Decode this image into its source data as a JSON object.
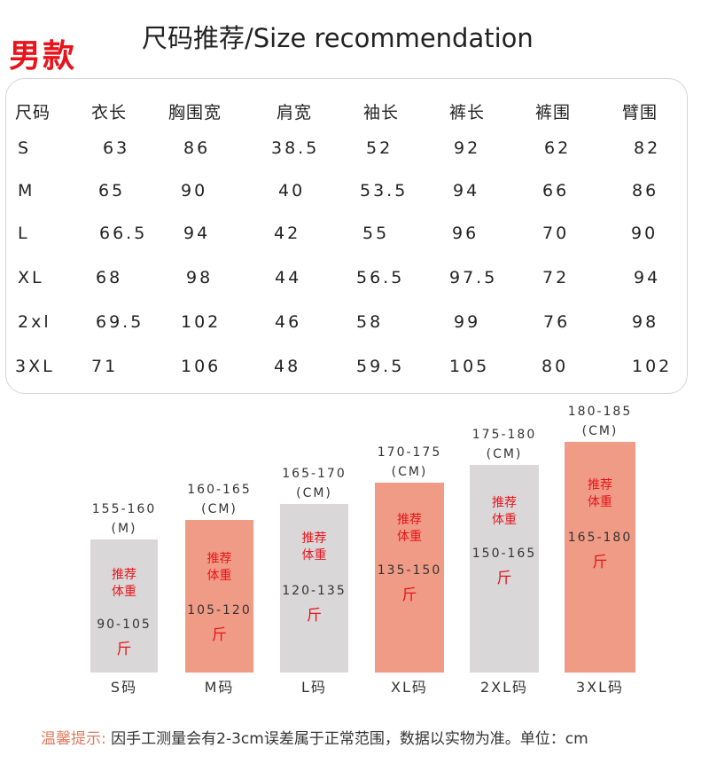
{
  "badge": "男款",
  "title": "尺码推荐/Size recommendation",
  "table": {
    "headers": [
      "尺码",
      "衣长",
      "胸围宽",
      "肩宽",
      "袖长",
      "裤长",
      "裤围",
      "臂围"
    ],
    "rows": [
      [
        "S",
        "63",
        "86",
        "38.5",
        "52",
        "92",
        "62",
        "82"
      ],
      [
        "M",
        "65",
        "90",
        "40",
        "53.5",
        "94",
        "66",
        "86"
      ],
      [
        "L",
        "66.5",
        "94",
        "42",
        "55",
        "96",
        "70",
        "90"
      ],
      [
        "XL",
        "68",
        "98",
        "44",
        "56.5",
        "97.5",
        "72",
        "94"
      ],
      [
        "2xl",
        "69.5",
        "102",
        "46",
        "58",
        "99",
        "76",
        "98"
      ],
      [
        "3XL",
        "71",
        "106",
        "48",
        "59.5",
        "105",
        "80",
        "102"
      ]
    ]
  },
  "bars": [
    {
      "size": "S码",
      "height_range": "155-160",
      "height_unit": "(M)",
      "rec": "推荐\n体重",
      "weight": "90-105",
      "jin": "斤",
      "color": "#d9d7d8"
    },
    {
      "size": "M码",
      "height_range": "160-165",
      "height_unit": "(CM)",
      "rec": "推荐\n体重",
      "weight": "105-120",
      "jin": "斤",
      "color": "#f09b85"
    },
    {
      "size": "L码",
      "height_range": "165-170",
      "height_unit": "(CM)",
      "rec": "推荐\n体重",
      "weight": "120-135",
      "jin": "斤",
      "color": "#d9d7d8"
    },
    {
      "size": "XL码",
      "height_range": "170-175",
      "height_unit": "(CM)",
      "rec": "推荐\n体重",
      "weight": "135-150",
      "jin": "斤",
      "color": "#f09b85"
    },
    {
      "size": "2XL码",
      "height_range": "175-180",
      "height_unit": "(CM)",
      "rec": "推荐\n体重",
      "weight": "150-165",
      "jin": "斤",
      "color": "#d9d7d8"
    },
    {
      "size": "3XL码",
      "height_range": "180-185",
      "height_unit": "(CM)",
      "rec": "推荐\n体重",
      "weight": "165-180",
      "jin": "斤",
      "color": "#f09b85"
    }
  ],
  "note": {
    "label": "温馨提示:",
    "text": "因手工测量会有2-3cm误差属于正常范围，数据以实物为准。单位：cm"
  },
  "colors": {
    "accent_red": "#e8141b",
    "salmon": "#f09b85",
    "gray": "#d9d7d8",
    "note_label": "#e07a5f"
  }
}
